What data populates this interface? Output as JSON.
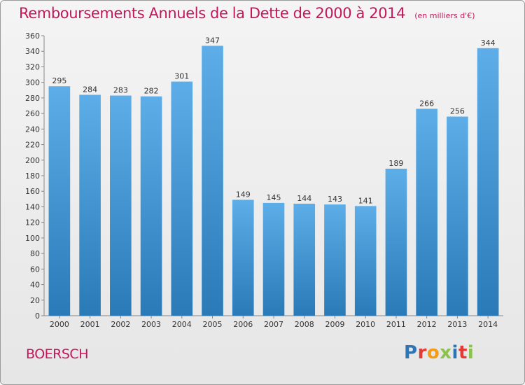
{
  "header": {
    "title": "Remboursements Annuels de la Dette de 2000 à 2014",
    "subtitle": "(en milliers d'€)"
  },
  "footer": {
    "place": "BOERSCH",
    "logo": "Proxiti"
  },
  "colors": {
    "title": "#c2185b",
    "bar_light": "#5dade8",
    "bar_dark": "#2a7ab8",
    "logo_letters": [
      "#2e75b6",
      "#e53935",
      "#f39c12",
      "#8bc34a",
      "#2e75b6",
      "#e53935",
      "#8bc34a"
    ]
  },
  "chart_data": {
    "type": "bar",
    "categories": [
      "2000",
      "2001",
      "2002",
      "2003",
      "2004",
      "2005",
      "2006",
      "2007",
      "2008",
      "2009",
      "2010",
      "2011",
      "2012",
      "2013",
      "2014"
    ],
    "values": [
      295,
      284,
      283,
      282,
      301,
      347,
      149,
      145,
      144,
      143,
      141,
      189,
      266,
      256,
      344
    ],
    "title": "Remboursements Annuels de la Dette de 2000 à 2014",
    "ylim": [
      0,
      360
    ],
    "ytick_step": 20,
    "grid": false,
    "legend": "none"
  }
}
